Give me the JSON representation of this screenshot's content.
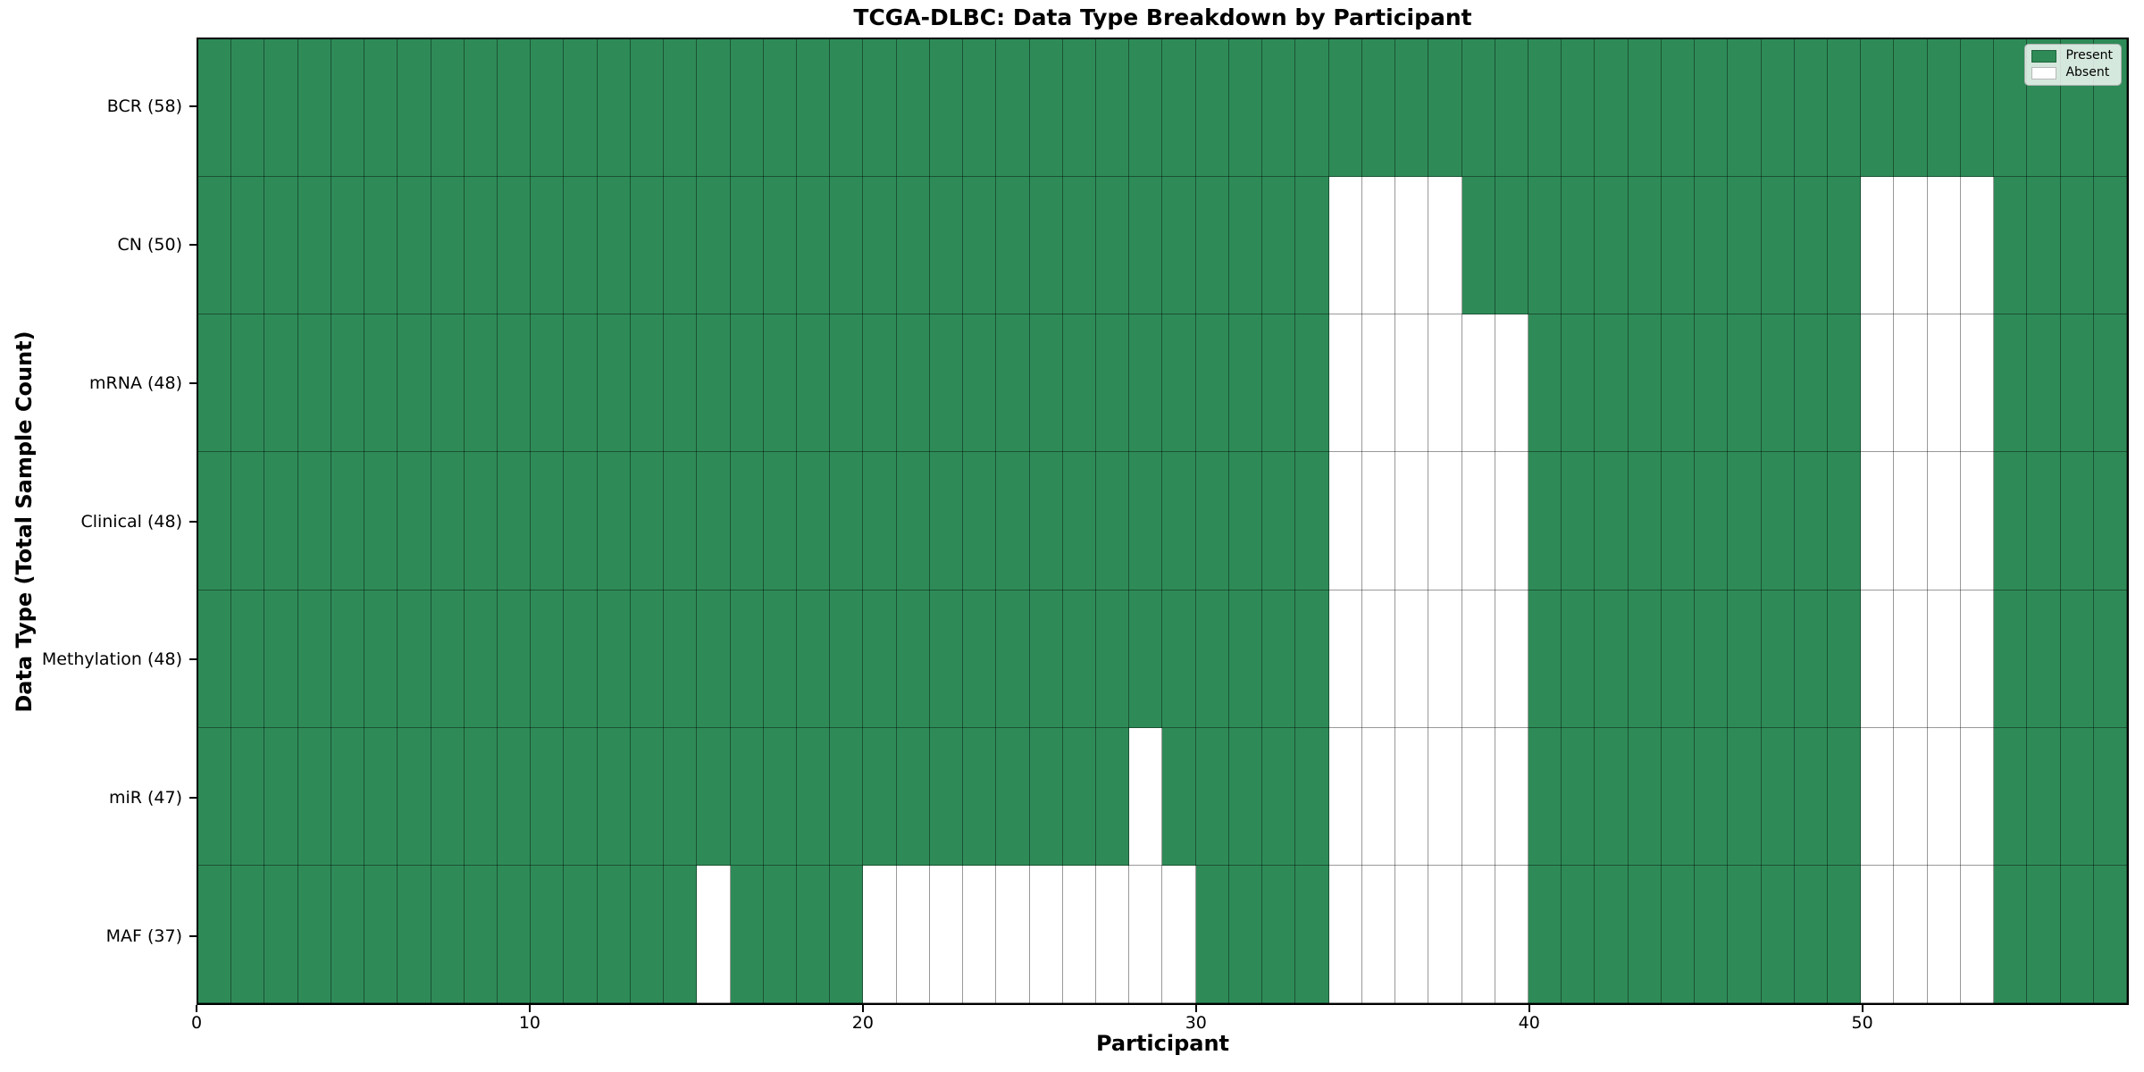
{
  "chart_data": {
    "type": "heatmap",
    "title": "TCGA-DLBC: Data Type Breakdown by Participant",
    "xlabel": "Participant",
    "ylabel": "Data Type (Total Sample Count)",
    "n_participants": 58,
    "x_ticks": [
      0,
      10,
      20,
      30,
      40,
      50
    ],
    "grid": true,
    "legend_position": "upper right",
    "colors": {
      "present": "#2e8b57",
      "absent": "#ffffff"
    },
    "legend": [
      {
        "label": "Present",
        "color": "#2e8b57"
      },
      {
        "label": "Absent",
        "color": "#ffffff"
      }
    ],
    "rows": [
      {
        "label": "BCR (58)",
        "data_type": "BCR",
        "total": 58,
        "absent_participants": []
      },
      {
        "label": "CN (50)",
        "data_type": "CN",
        "total": 50,
        "absent_participants": [
          34,
          35,
          36,
          37,
          50,
          51,
          52,
          53
        ]
      },
      {
        "label": "mRNA (48)",
        "data_type": "mRNA",
        "total": 48,
        "absent_participants": [
          34,
          35,
          36,
          37,
          38,
          39,
          50,
          51,
          52,
          53
        ]
      },
      {
        "label": "Clinical (48)",
        "data_type": "Clinical",
        "total": 48,
        "absent_participants": [
          34,
          35,
          36,
          37,
          38,
          39,
          50,
          51,
          52,
          53
        ]
      },
      {
        "label": "Methylation (48)",
        "data_type": "Methylation",
        "total": 48,
        "absent_participants": [
          34,
          35,
          36,
          37,
          38,
          39,
          50,
          51,
          52,
          53
        ]
      },
      {
        "label": "miR (47)",
        "data_type": "miR",
        "total": 47,
        "absent_participants": [
          28,
          34,
          35,
          36,
          37,
          38,
          39,
          50,
          51,
          52,
          53
        ]
      },
      {
        "label": "MAF (37)",
        "data_type": "MAF",
        "total": 37,
        "absent_participants": [
          15,
          20,
          21,
          22,
          23,
          24,
          25,
          26,
          27,
          28,
          29,
          34,
          35,
          36,
          37,
          38,
          39,
          50,
          51,
          52,
          53
        ]
      }
    ]
  }
}
